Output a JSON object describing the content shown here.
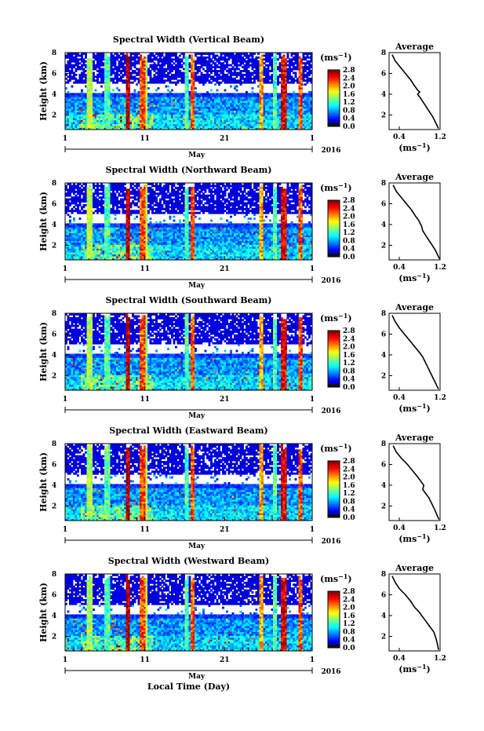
{
  "figure": {
    "xlabel": "Local Time (Day)",
    "month_label": "May",
    "year_label": "2016",
    "unit_label": "(ms",
    "unit_exp": "−1"
  },
  "chart_data": [
    {
      "type": "heatmap",
      "title": "Spectral Width (Vertical Beam)",
      "ylabel": "Height (km)",
      "xlim": [
        1,
        32
      ],
      "xticks": [
        "1",
        "11",
        "21",
        "1"
      ],
      "xtick_values": [
        1,
        11,
        21,
        32
      ],
      "ylim": [
        0.6,
        8
      ],
      "yticks": [
        "2",
        "4",
        "6",
        "8"
      ],
      "ytick_values": [
        2,
        4,
        6,
        8
      ],
      "colorbar": {
        "range": [
          0.0,
          2.6
        ],
        "ticks": [
          "0.0",
          "0.4",
          "0.8",
          "1.2",
          "1.6",
          "2.0",
          "2.4",
          "2.8"
        ],
        "tick_values": [
          0.0,
          0.4,
          0.8,
          1.2,
          1.6,
          2.0,
          2.4,
          2.8
        ]
      },
      "profile": {
        "title": "Average",
        "xlabel": "(ms",
        "xlim": [
          0.2,
          1.2
        ],
        "xticks": [
          "0.4",
          "1.2"
        ],
        "xtick_values": [
          0.4,
          1.2
        ],
        "ylim": [
          0.6,
          8
        ],
        "yticks": [
          "2",
          "4",
          "6",
          "8"
        ],
        "ytick_values": [
          2,
          4,
          6,
          8
        ],
        "height": [
          7.8,
          7.2,
          6.6,
          6.0,
          5.4,
          4.8,
          4.4,
          4.2,
          4.0,
          3.6,
          3.0,
          2.4,
          1.8,
          1.2,
          0.7
        ],
        "width": [
          0.26,
          0.32,
          0.42,
          0.52,
          0.62,
          0.7,
          0.76,
          0.8,
          0.76,
          0.82,
          0.9,
          0.98,
          1.06,
          1.12,
          1.17
        ]
      }
    },
    {
      "type": "heatmap",
      "title": "Spectral Width (Northward Beam)",
      "ylabel": "Height (km)",
      "xlim": [
        1,
        32
      ],
      "xticks": [
        "1",
        "11",
        "21",
        "1"
      ],
      "xtick_values": [
        1,
        11,
        21,
        32
      ],
      "ylim": [
        0.6,
        8
      ],
      "yticks": [
        "2",
        "4",
        "6",
        "8"
      ],
      "ytick_values": [
        2,
        4,
        6,
        8
      ],
      "colorbar": {
        "range": [
          0.0,
          2.6
        ],
        "ticks": [
          "0.0",
          "0.4",
          "0.8",
          "1.2",
          "1.6",
          "2.0",
          "2.4",
          "2.8"
        ],
        "tick_values": [
          0.0,
          0.4,
          0.8,
          1.2,
          1.6,
          2.0,
          2.4,
          2.8
        ]
      },
      "profile": {
        "title": "Average",
        "xlabel": "(ms",
        "xlim": [
          0.2,
          1.2
        ],
        "xticks": [
          "0.4",
          "1.2"
        ],
        "xtick_values": [
          0.4,
          1.2
        ],
        "ylim": [
          0.6,
          8
        ],
        "yticks": [
          "2",
          "4",
          "6",
          "8"
        ],
        "ytick_values": [
          2,
          4,
          6,
          8
        ],
        "height": [
          7.8,
          7.2,
          6.6,
          6.0,
          5.4,
          4.8,
          4.4,
          4.0,
          3.8,
          3.4,
          2.8,
          2.2,
          1.6,
          1.0,
          0.7
        ],
        "width": [
          0.28,
          0.34,
          0.44,
          0.54,
          0.64,
          0.72,
          0.78,
          0.82,
          0.84,
          0.86,
          0.94,
          1.02,
          1.1,
          1.16,
          1.19
        ]
      }
    },
    {
      "type": "heatmap",
      "title": "Spectral Width (Southward Beam)",
      "ylabel": "Height (km)",
      "xlim": [
        1,
        32
      ],
      "xticks": [
        "1",
        "11",
        "21",
        "1"
      ],
      "xtick_values": [
        1,
        11,
        21,
        32
      ],
      "ylim": [
        0.6,
        8
      ],
      "yticks": [
        "2",
        "4",
        "6",
        "8"
      ],
      "ytick_values": [
        2,
        4,
        6,
        8
      ],
      "colorbar": {
        "range": [
          0.0,
          2.6
        ],
        "ticks": [
          "0.0",
          "0.4",
          "0.8",
          "1.2",
          "1.6",
          "2.0",
          "2.4",
          "2.8"
        ],
        "tick_values": [
          0.0,
          0.4,
          0.8,
          1.2,
          1.6,
          2.0,
          2.4,
          2.8
        ]
      },
      "profile": {
        "title": "Average",
        "xlabel": "(ms",
        "xlim": [
          0.2,
          1.2
        ],
        "xticks": [
          "0.4",
          "1.2"
        ],
        "xtick_values": [
          0.4,
          1.2
        ],
        "ylim": [
          0.6,
          8
        ],
        "yticks": [
          "2",
          "4",
          "6",
          "8"
        ],
        "ytick_values": [
          2,
          4,
          6,
          8
        ],
        "height": [
          7.8,
          7.2,
          6.6,
          6.0,
          5.4,
          4.8,
          4.2,
          3.8,
          3.4,
          3.0,
          2.6,
          2.0,
          1.4,
          1.0,
          0.7
        ],
        "width": [
          0.26,
          0.32,
          0.4,
          0.5,
          0.6,
          0.7,
          0.8,
          0.86,
          0.9,
          0.94,
          0.98,
          1.04,
          1.1,
          1.14,
          1.17
        ]
      }
    },
    {
      "type": "heatmap",
      "title": "Spectral Width (Eastward Beam)",
      "ylabel": "Height (km)",
      "xlim": [
        1,
        32
      ],
      "xticks": [
        "1",
        "11",
        "21",
        "1"
      ],
      "xtick_values": [
        1,
        11,
        21,
        32
      ],
      "ylim": [
        0.6,
        8
      ],
      "yticks": [
        "2",
        "4",
        "6",
        "8"
      ],
      "ytick_values": [
        2,
        4,
        6,
        8
      ],
      "colorbar": {
        "range": [
          0.0,
          2.6
        ],
        "ticks": [
          "0.0",
          "0.4",
          "0.8",
          "1.2",
          "1.6",
          "2.0",
          "2.4",
          "2.8"
        ],
        "tick_values": [
          0.0,
          0.4,
          0.8,
          1.2,
          1.6,
          2.0,
          2.4,
          2.8
        ]
      },
      "profile": {
        "title": "Average",
        "xlabel": "(ms",
        "xlim": [
          0.2,
          1.2
        ],
        "xticks": [
          "0.4",
          "1.2"
        ],
        "xtick_values": [
          0.4,
          1.2
        ],
        "ylim": [
          0.6,
          8
        ],
        "yticks": [
          "2",
          "4",
          "6",
          "8"
        ],
        "ytick_values": [
          2,
          4,
          6,
          8
        ],
        "height": [
          7.8,
          7.2,
          6.6,
          6.0,
          5.4,
          4.8,
          4.4,
          4.0,
          3.6,
          3.2,
          2.8,
          2.2,
          1.6,
          1.0,
          0.7
        ],
        "width": [
          0.28,
          0.34,
          0.44,
          0.56,
          0.66,
          0.76,
          0.82,
          0.88,
          0.86,
          0.92,
          0.98,
          1.04,
          1.1,
          1.15,
          1.18
        ]
      }
    },
    {
      "type": "heatmap",
      "title": "Spectral Width (Westward Beam)",
      "ylabel": "Height (km)",
      "xlim": [
        1,
        32
      ],
      "xticks": [
        "1",
        "11",
        "21",
        "1"
      ],
      "xtick_values": [
        1,
        11,
        21,
        32
      ],
      "ylim": [
        0.6,
        8
      ],
      "yticks": [
        "2",
        "4",
        "6",
        "8"
      ],
      "ytick_values": [
        2,
        4,
        6,
        8
      ],
      "colorbar": {
        "range": [
          0.0,
          2.6
        ],
        "ticks": [
          "0.0",
          "0.4",
          "0.8",
          "1.2",
          "1.6",
          "2.0",
          "2.4",
          "2.8"
        ],
        "tick_values": [
          0.0,
          0.4,
          0.8,
          1.2,
          1.6,
          2.0,
          2.4,
          2.8
        ]
      },
      "profile": {
        "title": "Average",
        "xlabel": "(ms",
        "xlim": [
          0.2,
          1.2
        ],
        "xticks": [
          "0.4",
          "1.2"
        ],
        "xtick_values": [
          0.4,
          1.2
        ],
        "ylim": [
          0.6,
          8
        ],
        "yticks": [
          "2",
          "4",
          "6",
          "8"
        ],
        "ytick_values": [
          2,
          4,
          6,
          8
        ],
        "height": [
          7.8,
          7.2,
          6.6,
          6.0,
          5.4,
          4.8,
          4.4,
          4.0,
          3.6,
          3.2,
          2.8,
          2.4,
          1.8,
          1.2,
          0.7
        ],
        "width": [
          0.26,
          0.32,
          0.4,
          0.52,
          0.62,
          0.7,
          0.78,
          0.84,
          0.9,
          0.96,
          1.02,
          1.08,
          1.12,
          1.15,
          1.17
        ]
      }
    }
  ]
}
